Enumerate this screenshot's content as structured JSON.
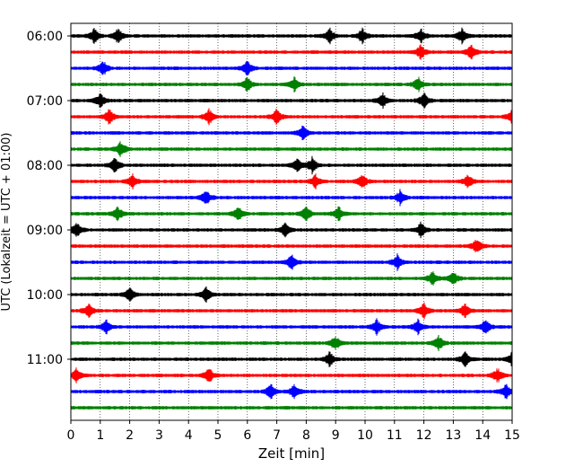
{
  "chart_data": {
    "type": "line",
    "title": "",
    "xlabel": "Zeit  [min]",
    "ylabel": "UTC (Lokalzeit = UTC + 01:00)",
    "xlim": [
      0,
      15
    ],
    "x_ticks": [
      0,
      1,
      2,
      3,
      4,
      5,
      6,
      7,
      8,
      9,
      10,
      11,
      12,
      13,
      14,
      15
    ],
    "grid": "vertical dotted",
    "start_time": "06:00",
    "row_interval_minutes": 15,
    "row_count": 24,
    "y_tick_labels": [
      "06:00",
      "07:00",
      "08:00",
      "09:00",
      "10:00",
      "11:00"
    ],
    "colors": [
      "#000000",
      "#ff0000",
      "#0000ff",
      "#008000"
    ],
    "series": [
      {
        "values": [
          0.8,
          1.6,
          8.8,
          9.9,
          11.9,
          13.3
        ]
      },
      {
        "values": [
          11.9,
          13.6
        ]
      },
      {
        "values": [
          1.1,
          6.0
        ]
      },
      {
        "values": [
          6.0,
          7.6,
          11.8
        ]
      },
      {
        "values": [
          1.0,
          10.6,
          12.0
        ]
      },
      {
        "values": [
          1.3,
          4.7,
          7.0,
          15.0
        ]
      },
      {
        "values": [
          7.9
        ]
      },
      {
        "values": [
          1.7
        ]
      },
      {
        "values": [
          1.5,
          7.7,
          8.2
        ]
      },
      {
        "values": [
          2.1,
          8.3,
          9.9,
          13.5
        ]
      },
      {
        "values": [
          4.6,
          11.2
        ]
      },
      {
        "values": [
          1.6,
          5.7,
          8.0,
          9.1
        ]
      },
      {
        "values": [
          0.2,
          7.3,
          11.9
        ]
      },
      {
        "values": [
          13.8
        ]
      },
      {
        "values": [
          7.5,
          11.1
        ]
      },
      {
        "values": [
          12.3,
          13.0
        ]
      },
      {
        "values": [
          2.0,
          4.6
        ]
      },
      {
        "values": [
          0.6,
          12.0,
          13.4
        ]
      },
      {
        "values": [
          1.2,
          10.4,
          11.8,
          14.1
        ]
      },
      {
        "values": [
          9.0,
          12.5
        ]
      },
      {
        "values": [
          8.8,
          13.4,
          15.0
        ]
      },
      {
        "values": [
          0.2,
          4.7,
          14.5
        ]
      },
      {
        "values": [
          6.8,
          7.6,
          14.8
        ]
      },
      {
        "values": []
      }
    ]
  }
}
